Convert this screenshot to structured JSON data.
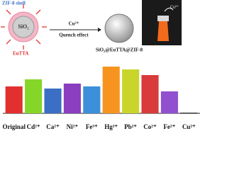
{
  "diagram": {
    "shell_label": "ZIF-8 shell",
    "core_label": "SiO₂",
    "dye_label": "EuTTA",
    "arrow_top": "Cu²⁺",
    "arrow_bottom": "Quench effect",
    "product_label": "SiO₂@EuTTA@ZIF-8",
    "photo_label": "Cu²⁺"
  },
  "chart_data": {
    "type": "bar",
    "categories": [
      "Original",
      "Cd²⁺",
      "Ca²⁺",
      "Ni²⁺",
      "Fe³⁺",
      "Hg²⁺",
      "Pb²⁺",
      "Co²⁺",
      "Fe²⁺",
      "Cu²⁺"
    ],
    "values": [
      38,
      48,
      35,
      42,
      38,
      66,
      62,
      54,
      31,
      1
    ],
    "colors": [
      "#e2302f",
      "#86d62a",
      "#3b6fc4",
      "#8b3fbf",
      "#3c8fd9",
      "#f7941f",
      "#c9d52b",
      "#d93a3a",
      "#9150d0",
      "#333333"
    ],
    "ylim": [
      0,
      70
    ]
  }
}
